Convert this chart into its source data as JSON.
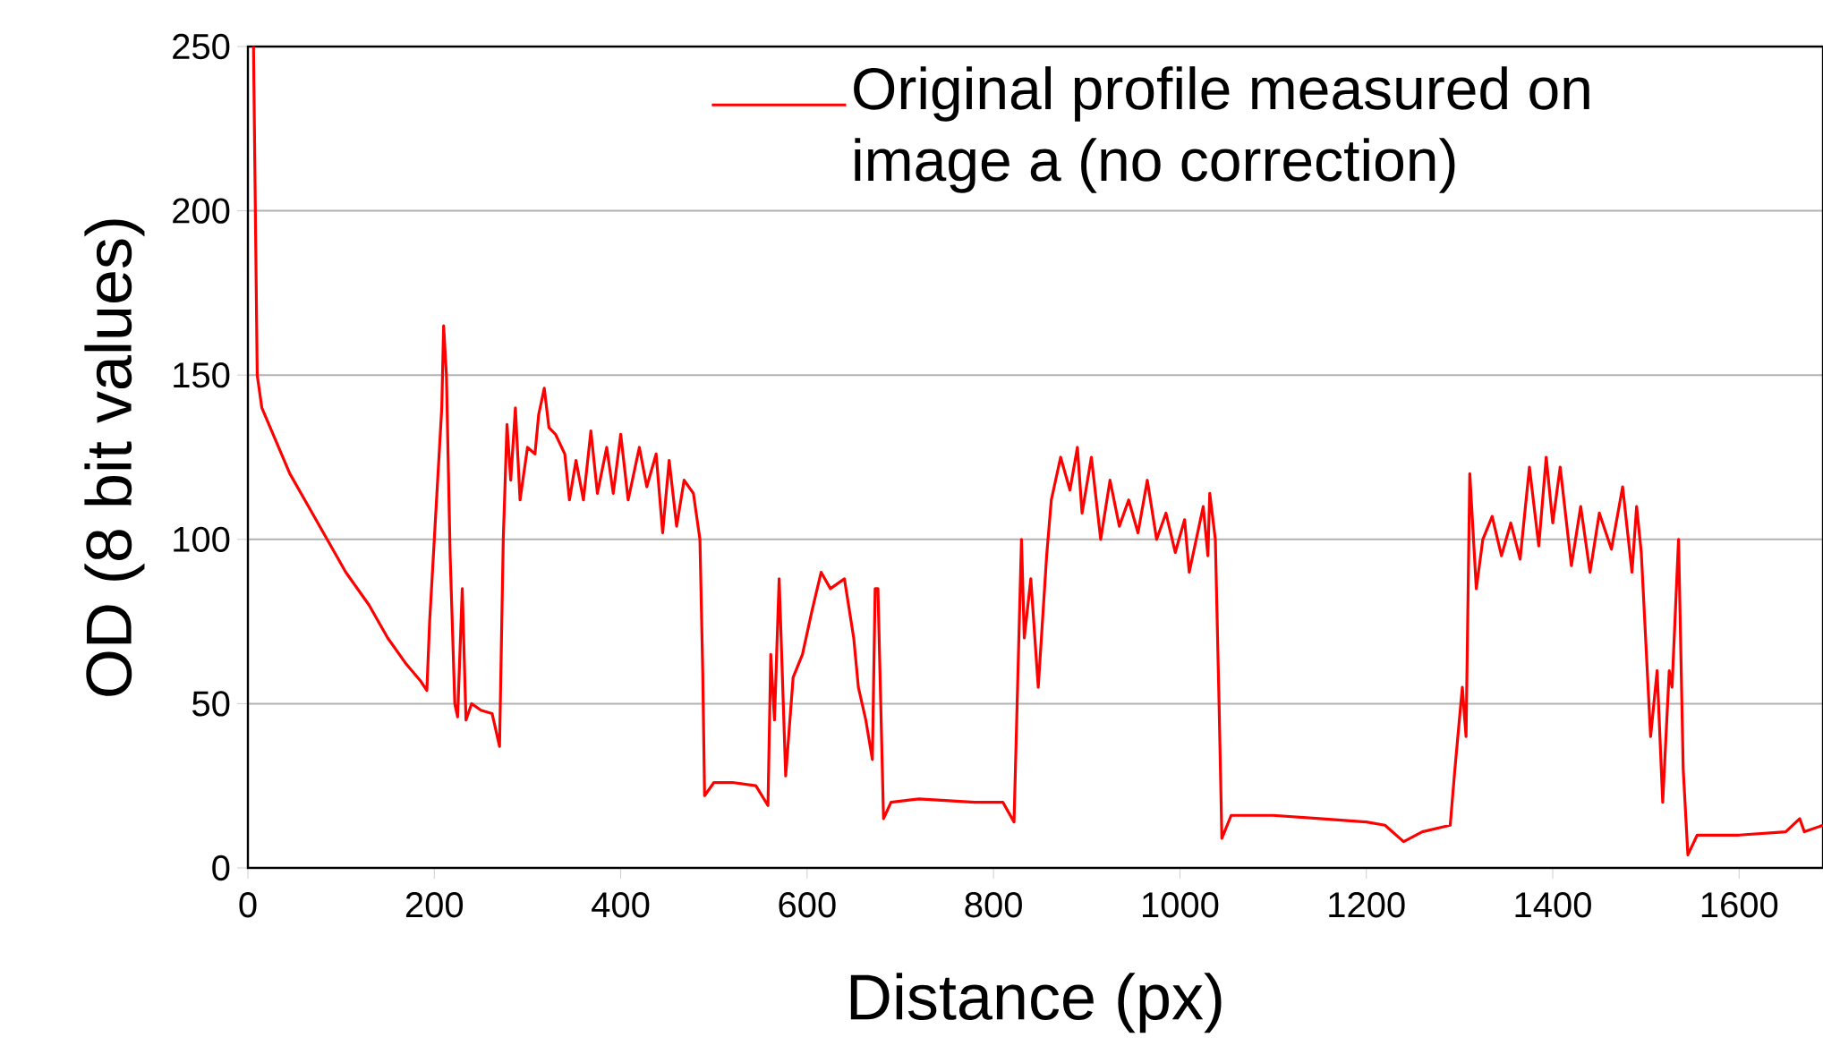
{
  "chart_data": {
    "type": "line",
    "xlabel": "Distance (px)",
    "ylabel": "OD (8 bit values)",
    "xlim": [
      0,
      1690
    ],
    "ylim": [
      0,
      250
    ],
    "xticks": [
      0,
      200,
      400,
      600,
      800,
      1000,
      1200,
      1400,
      1600
    ],
    "yticks": [
      0,
      50,
      100,
      150,
      200,
      250
    ],
    "grid": "y",
    "legend": "top",
    "series": [
      {
        "name": "Original profile measured on image a (no correction)",
        "color": "#ff0000",
        "x": [
          6,
          10,
          15,
          30,
          45,
          65,
          85,
          105,
          130,
          150,
          170,
          185,
          192,
          195,
          200,
          205,
          208,
          210,
          213,
          217,
          222,
          225,
          230,
          234,
          240,
          250,
          262,
          270,
          274,
          278,
          282,
          287,
          292,
          300,
          308,
          312,
          318,
          323,
          330,
          340,
          345,
          352,
          360,
          368,
          375,
          385,
          392,
          400,
          408,
          420,
          428,
          438,
          445,
          452,
          460,
          468,
          478,
          485,
          488,
          490,
          500,
          520,
          545,
          558,
          561,
          565,
          570,
          577,
          585,
          595,
          605,
          615,
          625,
          640,
          650,
          655,
          663,
          670,
          673,
          676,
          682,
          690,
          720,
          780,
          810,
          822,
          830,
          833,
          840,
          848,
          857,
          862,
          872,
          882,
          890,
          895,
          905,
          915,
          925,
          935,
          945,
          955,
          965,
          975,
          985,
          995,
          1005,
          1010,
          1025,
          1030,
          1032,
          1038,
          1042,
          1045,
          1055,
          1100,
          1150,
          1200,
          1220,
          1240,
          1260,
          1290,
          1295,
          1303,
          1307,
          1311,
          1318,
          1325,
          1335,
          1345,
          1355,
          1365,
          1375,
          1385,
          1393,
          1400,
          1408,
          1420,
          1430,
          1440,
          1450,
          1463,
          1475,
          1485,
          1490,
          1495,
          1505,
          1512,
          1518,
          1525,
          1528,
          1535,
          1540,
          1545,
          1555,
          1600,
          1650,
          1665,
          1670,
          1690
        ],
        "values": [
          250,
          150,
          140,
          130,
          120,
          110,
          100,
          90,
          80,
          70,
          62,
          57,
          54,
          75,
          100,
          125,
          140,
          165,
          150,
          95,
          50,
          46,
          85,
          45,
          50,
          48,
          47,
          37,
          100,
          135,
          118,
          140,
          112,
          128,
          126,
          138,
          146,
          134,
          132,
          126,
          112,
          124,
          112,
          133,
          114,
          128,
          114,
          132,
          112,
          128,
          116,
          126,
          102,
          124,
          104,
          118,
          114,
          100,
          60,
          22,
          26,
          26,
          25,
          19,
          65,
          45,
          88,
          28,
          58,
          65,
          78,
          90,
          85,
          88,
          70,
          55,
          45,
          33,
          85,
          85,
          15,
          20,
          21,
          20,
          20,
          14,
          100,
          70,
          88,
          55,
          95,
          112,
          125,
          115,
          128,
          108,
          125,
          100,
          118,
          104,
          112,
          102,
          118,
          100,
          108,
          96,
          106,
          90,
          110,
          95,
          114,
          100,
          50,
          9,
          16,
          16,
          15,
          14,
          13,
          8,
          11,
          13,
          30,
          55,
          40,
          120,
          85,
          100,
          107,
          95,
          105,
          94,
          122,
          98,
          125,
          105,
          122,
          92,
          110,
          90,
          108,
          97,
          116,
          90,
          110,
          96,
          40,
          60,
          20,
          60,
          55,
          100,
          30,
          4,
          10,
          10,
          11,
          15,
          11,
          13
        ]
      }
    ]
  }
}
